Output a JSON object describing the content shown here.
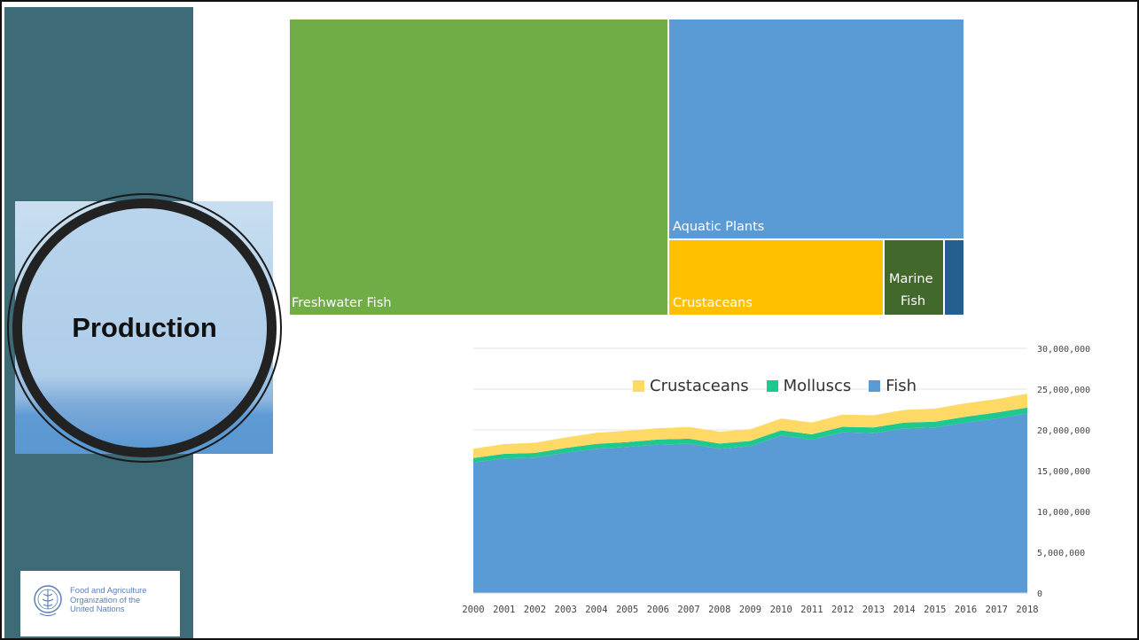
{
  "slide": {
    "section_title": "Production",
    "logo_lines": [
      "Food and Agriculture",
      "Organization of the",
      "United Nations"
    ],
    "colors": {
      "sidebar": "#3d6b77",
      "banner_light": "#aecde9",
      "banner_dark": "#5b98d2"
    }
  },
  "chart_data": [
    {
      "type": "treemap",
      "title": "",
      "items": [
        {
          "label": "Freshwater Fish",
          "color": "#70ad47"
        },
        {
          "label": "Aquatic Plants",
          "color": "#5b9bd5"
        },
        {
          "label": "Crustaceans",
          "color": "#ffc000"
        },
        {
          "label": "Marine Fish",
          "label_lines": [
            "Marine",
            "Fish"
          ],
          "color": "#43682b"
        },
        {
          "label": "",
          "color": "#255e91"
        }
      ]
    },
    {
      "type": "area",
      "stacked": true,
      "title": "",
      "xlabel": "",
      "ylabel": "",
      "x": [
        "2000",
        "2001",
        "2002",
        "2003",
        "2004",
        "2005",
        "2006",
        "2007",
        "2008",
        "2009",
        "2010",
        "2011",
        "2012",
        "2013",
        "2014",
        "2015",
        "2016",
        "2017",
        "2018"
      ],
      "series": [
        {
          "name": "Fish",
          "color": "#5b9bd5",
          "values": [
            16000000,
            16500000,
            16600000,
            17200000,
            17700000,
            17900000,
            18200000,
            18300000,
            17700000,
            18000000,
            19300000,
            18800000,
            19700000,
            19600000,
            20200000,
            20300000,
            20900000,
            21400000,
            22000000
          ]
        },
        {
          "name": "Molluscs",
          "color": "#1ec88e",
          "values": [
            550000,
            560000,
            570000,
            580000,
            590000,
            600000,
            610000,
            620000,
            630000,
            640000,
            650000,
            660000,
            680000,
            690000,
            700000,
            710000,
            720000,
            730000,
            750000
          ]
        },
        {
          "name": "Crustaceans",
          "color": "#ffd966",
          "values": [
            1150000,
            1200000,
            1250000,
            1300000,
            1350000,
            1400000,
            1400000,
            1450000,
            1450000,
            1450000,
            1450000,
            1450000,
            1500000,
            1500000,
            1550000,
            1600000,
            1650000,
            1650000,
            1700000
          ]
        }
      ],
      "legend_order": [
        "Crustaceans",
        "Molluscs",
        "Fish"
      ],
      "yticks": [
        "0",
        "5,000,000",
        "10,000,000",
        "15,000,000",
        "20,000,000",
        "25,000,000",
        "30,000,000"
      ],
      "ylim": [
        0,
        30000000
      ],
      "y_axis_side": "right",
      "legend_position": "top",
      "grid": true
    }
  ]
}
